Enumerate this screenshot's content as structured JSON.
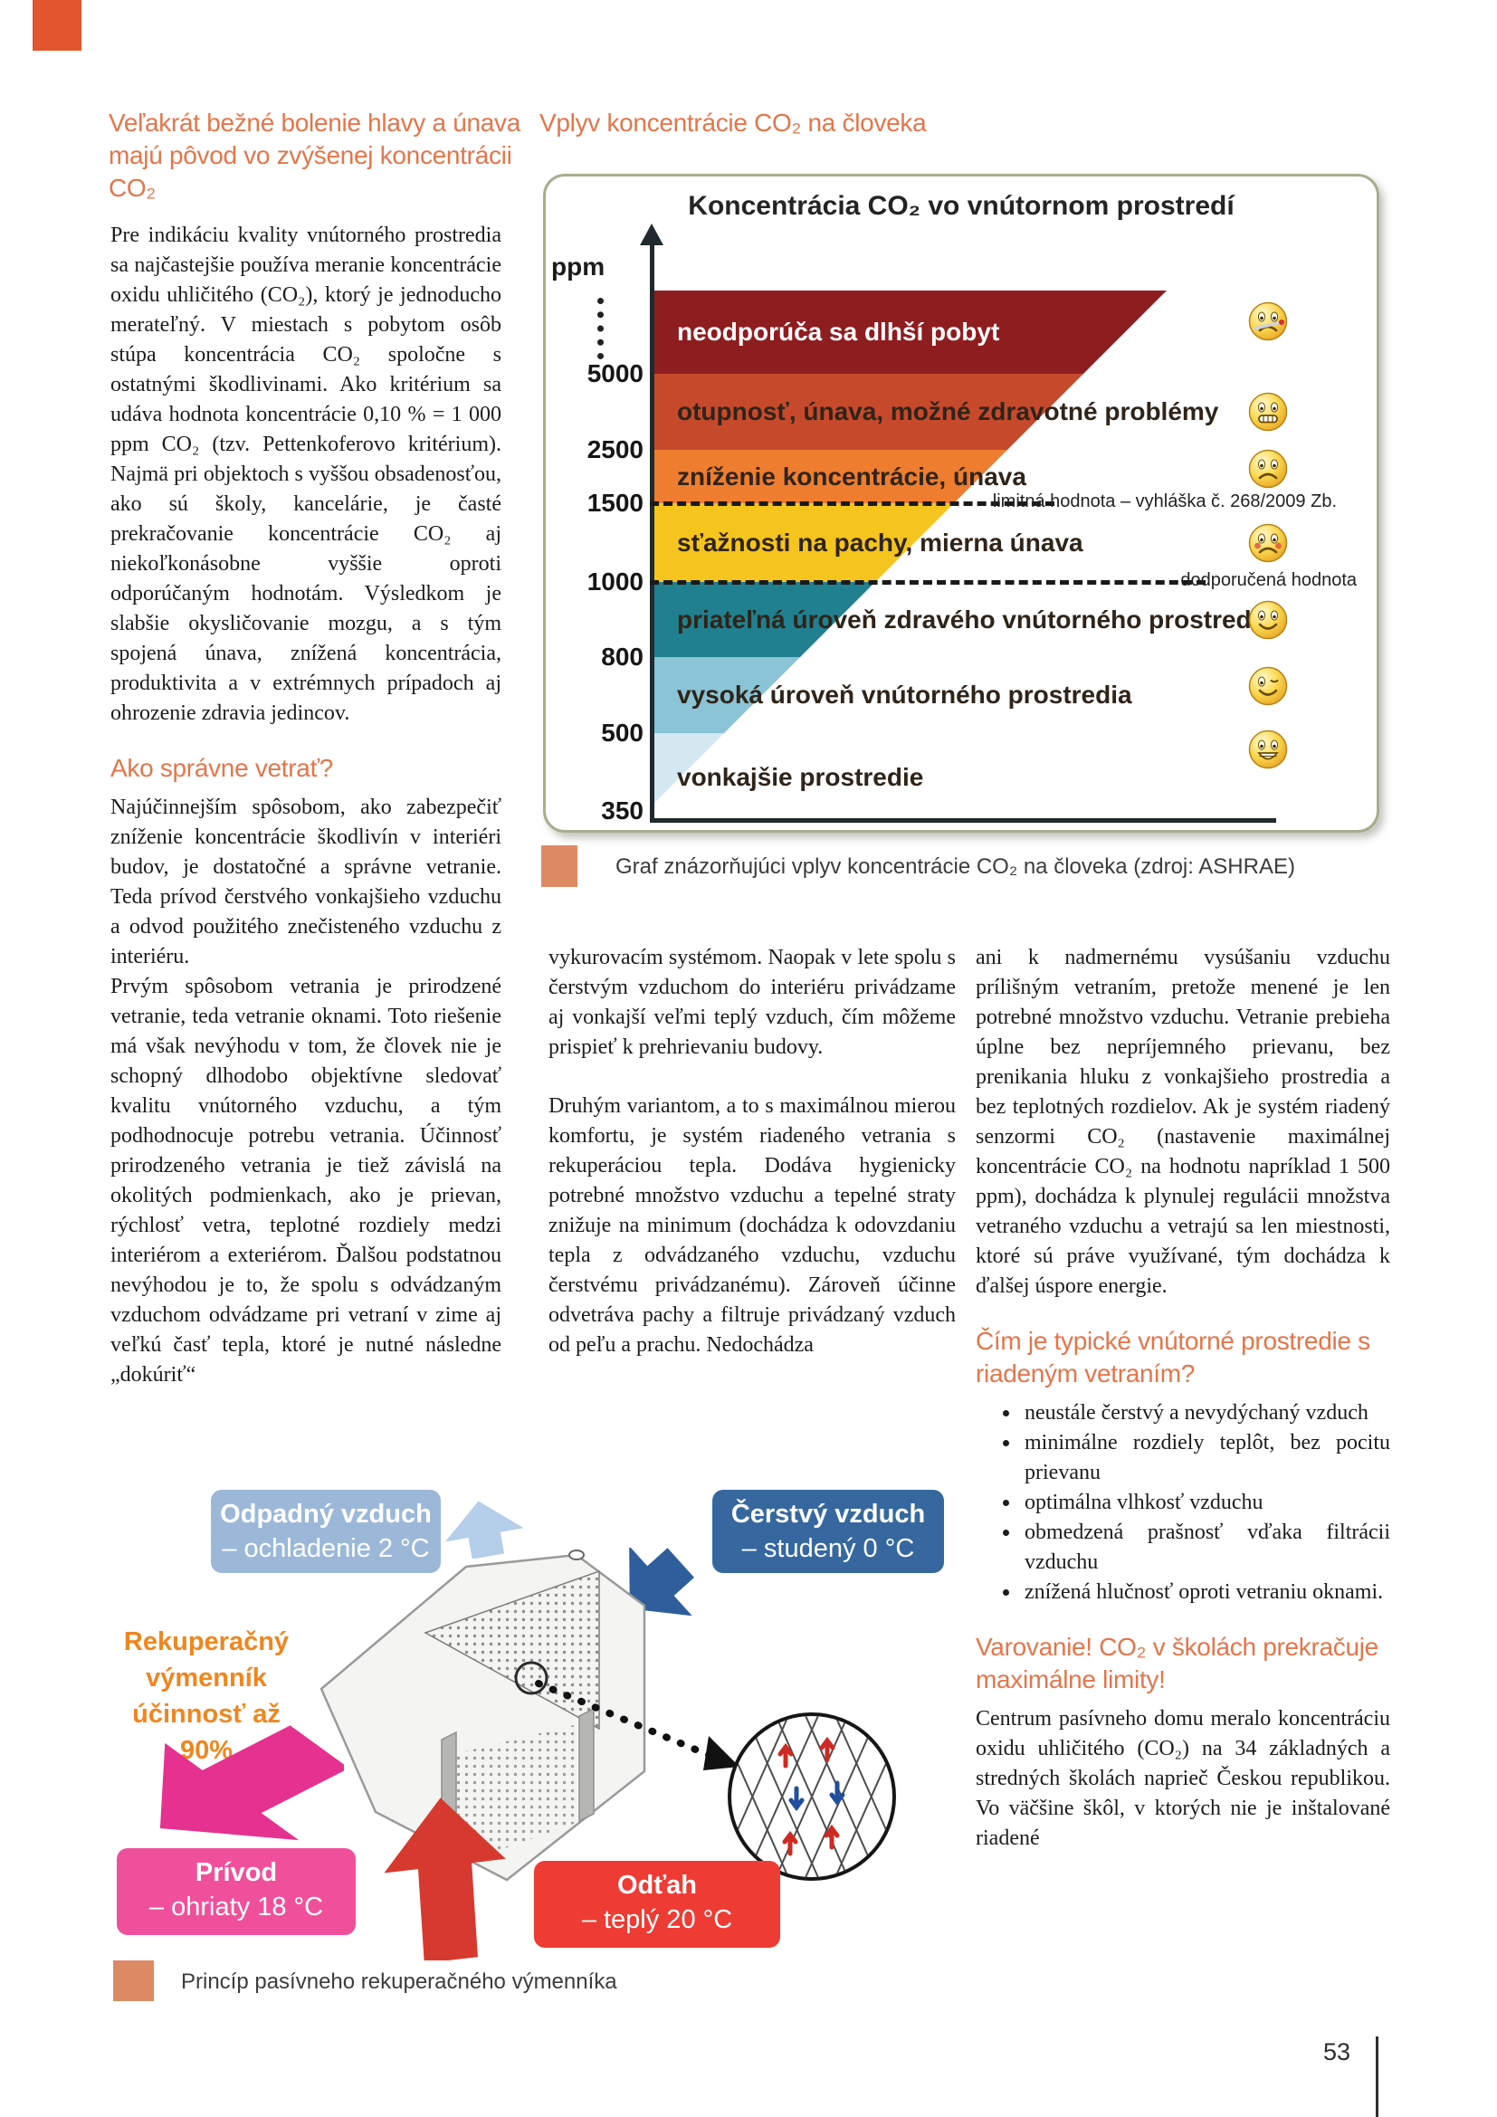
{
  "page_number": "53",
  "colors": {
    "accent_heading": "#e4754a",
    "corner_bar": "#e2542b",
    "caption_swatch": "#dd8a64",
    "box_exhaust": "#9cb8d9",
    "box_fresh": "#36689f",
    "box_supply": "#f0509b",
    "box_extract": "#ee3b33",
    "exchanger_label": "#f0861e"
  },
  "left_article": {
    "heading": "Veľakrát bežné bolenie hlavy a únava\nmajú pôvod vo zvýšenej koncentrácii\nCO₂",
    "p1": "Pre indikáciu kvality vnútorného prostredia sa najčastejšie používa meranie koncentrácie oxidu uhličitého (CO₂), ktorý je jednoducho merateľný. V miestach s pobytom osôb stúpa koncentrácia CO₂ spoločne s ostatnými škodlivinami. Ako kritérium sa udáva hodnota koncentrácie 0,10 % = 1 000 ppm CO₂ (tzv. Pettenkoferovo kritérium). Najmä pri objektoch s vyššou obsadenosťou, ako sú školy, kancelárie, je časté prekračovanie koncentrácie CO₂ aj niekoľkonásobne vyššie oproti odporúčaným hodnotám. Výsledkom je slabšie okysličovanie mozgu, a s tým spojená únava, znížená koncentrácia, produktivita a v extrémnych prípadoch aj ohrozenie zdravia jedincov.",
    "section_heading": "Ako správne vetrať?",
    "p2": "Najúčinnejším spôsobom, ako zabezpečiť zníženie koncentrácie škodlivín v interiéri budov, je dostatočné a správne vetranie. Teda prívod čerstvého vonkajšieho vzduchu a odvod použitého znečisteného vzduchu z interiéru.",
    "p3": "Prvým spôsobom vetrania je prirodzené vetranie, teda vetranie oknami. Toto riešenie má však nevýhodu v tom, že človek nie je schopný dlhodobo objektívne sledovať kvalitu vnútorného vzduchu, a tým podhodnocuje potrebu vetrania. Účinnosť prirodzeného vetrania je tiež závislá na okolitých podmienkach, ako je prievan, rýchlosť vetra, teplotné rozdiely medzi interiérom a exteriérom. Ďalšou podstatnou nevýhodou je to, že spolu s odvádzaným vzduchom odvádzame pri vetraní v zime aj veľkú časť tepla, ktoré je nutné následne „dokúriť“"
  },
  "chart_section": {
    "heading": "Vplyv koncentrácie CO₂ na človeka",
    "caption": "Graf znázorňujúci vplyv koncentrácie CO₂ na človeka (zdroj: ASHRAE)"
  },
  "chart_data": {
    "type": "area",
    "title": "Koncentrácia CO₂ vo vnútornom prostredí",
    "unit": "ppm",
    "axis_ticks_ppm": [
      "5000",
      "2500",
      "1500",
      "1000",
      "800",
      "500",
      "350"
    ],
    "bands": [
      {
        "label": "neodporúča sa dlhší pobyt",
        "ppm_from": 5000,
        "ppm_to": "5000+",
        "color": "#8e1d20",
        "text_color": "#ffffff",
        "smiley": "sick"
      },
      {
        "label": "otupnosť, únava, možné zdravotné problémy",
        "ppm_from": 2500,
        "ppm_to": 5000,
        "color": "#c7492c",
        "text_color": "#2f2419",
        "smiley": "grimace"
      },
      {
        "label": "zníženie koncentrácie, únava",
        "ppm_from": 1500,
        "ppm_to": 2500,
        "color": "#ee7d30",
        "text_color": "#2f2419",
        "smiley": "sad"
      },
      {
        "label": "sťažnosti na pachy, mierna únava",
        "ppm_from": 1000,
        "ppm_to": 1500,
        "color": "#f6c51d",
        "text_color": "#2f2419",
        "smiley": "flushed"
      },
      {
        "label": "priateľná úroveň zdravého vnútorného prostredia",
        "ppm_from": 800,
        "ppm_to": 1000,
        "color": "#20808f",
        "text_color": "#2f2419",
        "smiley": "smile"
      },
      {
        "label": "vysoká úroveň vnútorného prostredia",
        "ppm_from": 500,
        "ppm_to": 800,
        "color": "#8ac4d6",
        "text_color": "#2f2419",
        "smiley": "wink"
      },
      {
        "label": "vonkajšie prostredie",
        "ppm_from": 350,
        "ppm_to": 500,
        "color": "#d3e8f0",
        "text_color": "#2f2419",
        "smiley": "grin"
      }
    ],
    "reference_lines": [
      {
        "ppm": 1500,
        "label": "limitná hodnota – vyhláška č. 268/2009 Zb."
      },
      {
        "ppm": 1000,
        "label": "dodporučená hodnota"
      }
    ],
    "legend_position": "none",
    "grid": false
  },
  "mid_column": {
    "p1": "vykurovacím systémom. Naopak v lete spolu s čerstvým vzduchom do interiéru privádzame aj vonkajší veľmi teplý vzduch, čím môžeme prispieť k prehrievaniu budovy.",
    "p2": "Druhým variantom, a to s maximálnou mierou komfortu, je systém riadeného vetrania s rekuperáciou tepla. Dodáva hygienicky potrebné množstvo vzduchu a tepelné straty znižuje na minimum (dochádza k odovzdaniu tepla z odvádzaného vzduchu, vzduchu čerstvému privádzanému). Zároveň účinne odvetráva pachy a filtruje privádzaný vzduch od peľu a prachu. Nedochádza"
  },
  "right_column": {
    "p1": "ani k nadmernému vysúšaniu vzduchu prílišným vetraním, pretože menené je len potrebné množstvo vzduchu. Vetranie prebieha úplne bez nepríjemného prievanu, bez prenikania hluku z vonkajšieho prostredia a bez teplotných rozdielov. Ak je systém riadený senzormi CO₂ (nastavenie maximálnej koncentrácie CO₂ na hodnotu napríklad 1 500 ppm), dochádza k plynulej regulácii množstva vetraného vzduchu a vetrajú sa len miestnosti, ktoré sú práve využívané, tým dochádza k ďalšej úspore energie.",
    "heading_typical": "Čím je typické vnútorné prostredie s riadeným vetraním?",
    "bullets": [
      "neustále čerstvý a nevydýchaný vzduch",
      "minimálne rozdiely teplôt, bez pocitu prievanu",
      "optimálna vlhkosť vzduchu",
      "obmedzená prašnosť vďaka filtrácii vzduchu",
      "znížená hlučnosť oproti vetraniu oknami."
    ],
    "heading_warning": "Varovanie! CO₂ v školách prekračuje maximálne limity!",
    "p2": "Centrum pasívneho domu meralo koncentráciu oxidu uhličitého (CO₂) na 34 základných a stredných školách naprieč Českou republikou. Vo väčšine škôl, v ktorých nie je inštalované riadené"
  },
  "diagram": {
    "box_exhaust": {
      "line1": "Odpadný vzduch",
      "line2": "– ochladenie 2 °C"
    },
    "box_fresh": {
      "line1": "Čerstvý vzduch",
      "line2": "– studený 0 °C"
    },
    "exchanger_label": "Rekuperačný\nvýmenník\núčinnosť až 90%",
    "box_supply": {
      "line1": "Prívod",
      "line2": "– ohriaty 18 °C"
    },
    "box_extract": {
      "line1": "Odťah",
      "line2": "– teplý 20 °C"
    },
    "caption": "Princíp pasívneho rekuperačného výmenníka"
  }
}
